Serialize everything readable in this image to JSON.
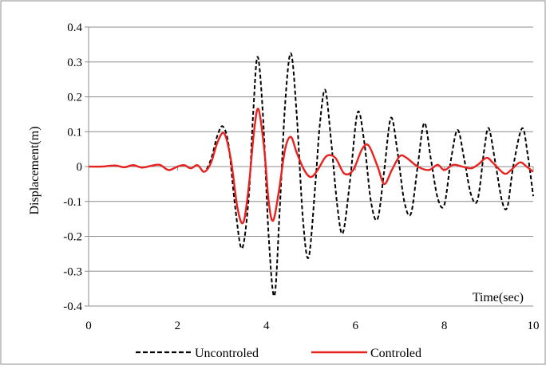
{
  "chart_data": {
    "type": "line",
    "xlabel": "Time(sec)",
    "ylabel": "Displacement(m)",
    "xlim": [
      0,
      10
    ],
    "ylim": [
      -0.4,
      0.4
    ],
    "x_ticks": [
      0,
      2,
      4,
      6,
      8,
      10
    ],
    "y_ticks": [
      0.4,
      0.3,
      0.2,
      0.1,
      0,
      -0.1,
      -0.2,
      -0.3,
      -0.4
    ],
    "x_tick_labels": [
      "0",
      "2",
      "4",
      "6",
      "8",
      "10"
    ],
    "y_tick_labels": [
      "0.4",
      "0.3",
      "0.2",
      "0.1",
      "0",
      "-0.1",
      "-0.2",
      "-0.3",
      "-0.4"
    ],
    "grid": "horizontal",
    "legend_position": "bottom",
    "series": [
      {
        "name": "Uncontroled",
        "color": "#000000",
        "style": "dashed",
        "points": [
          [
            0,
            0
          ],
          [
            0.3,
            0.0
          ],
          [
            0.6,
            0.003
          ],
          [
            0.8,
            -0.002
          ],
          [
            1.0,
            0.004
          ],
          [
            1.2,
            -0.003
          ],
          [
            1.4,
            0.002
          ],
          [
            1.6,
            0.005
          ],
          [
            1.8,
            -0.01
          ],
          [
            2.0,
            0.0
          ],
          [
            2.15,
            0.004
          ],
          [
            2.3,
            -0.005
          ],
          [
            2.45,
            0.004
          ],
          [
            2.6,
            -0.015
          ],
          [
            2.75,
            0.02
          ],
          [
            2.9,
            0.09
          ],
          [
            3.02,
            0.115
          ],
          [
            3.15,
            0.06
          ],
          [
            3.3,
            -0.12
          ],
          [
            3.45,
            -0.235
          ],
          [
            3.6,
            -0.09
          ],
          [
            3.7,
            0.15
          ],
          [
            3.8,
            0.315
          ],
          [
            3.92,
            0.15
          ],
          [
            4.05,
            -0.2
          ],
          [
            4.18,
            -0.37
          ],
          [
            4.3,
            -0.12
          ],
          [
            4.42,
            0.18
          ],
          [
            4.55,
            0.325
          ],
          [
            4.68,
            0.15
          ],
          [
            4.82,
            -0.15
          ],
          [
            4.95,
            -0.26
          ],
          [
            5.1,
            -0.05
          ],
          [
            5.2,
            0.12
          ],
          [
            5.32,
            0.22
          ],
          [
            5.45,
            0.08
          ],
          [
            5.6,
            -0.12
          ],
          [
            5.72,
            -0.19
          ],
          [
            5.88,
            -0.04
          ],
          [
            6.05,
            0.155
          ],
          [
            6.2,
            0.07
          ],
          [
            6.35,
            -0.1
          ],
          [
            6.5,
            -0.15
          ],
          [
            6.65,
            -0.01
          ],
          [
            6.8,
            0.14
          ],
          [
            6.95,
            0.04
          ],
          [
            7.1,
            -0.1
          ],
          [
            7.25,
            -0.135
          ],
          [
            7.4,
            0.0
          ],
          [
            7.55,
            0.125
          ],
          [
            7.7,
            0.02
          ],
          [
            7.85,
            -0.09
          ],
          [
            8.0,
            -0.11
          ],
          [
            8.15,
            0.02
          ],
          [
            8.3,
            0.105
          ],
          [
            8.45,
            0.02
          ],
          [
            8.6,
            -0.08
          ],
          [
            8.75,
            -0.095
          ],
          [
            8.9,
            0.05
          ],
          [
            9.0,
            0.11
          ],
          [
            9.15,
            0.01
          ],
          [
            9.3,
            -0.1
          ],
          [
            9.42,
            -0.115
          ],
          [
            9.55,
            0.0
          ],
          [
            9.75,
            0.11
          ],
          [
            9.88,
            0.03
          ],
          [
            10.0,
            -0.085
          ]
        ]
      },
      {
        "name": "Controled",
        "color": "#e8231f",
        "style": "solid",
        "points": [
          [
            0,
            0
          ],
          [
            0.3,
            0.0
          ],
          [
            0.6,
            0.003
          ],
          [
            0.8,
            -0.002
          ],
          [
            1.0,
            0.004
          ],
          [
            1.2,
            -0.003
          ],
          [
            1.4,
            0.002
          ],
          [
            1.6,
            0.005
          ],
          [
            1.8,
            -0.01
          ],
          [
            2.0,
            0.0
          ],
          [
            2.15,
            0.004
          ],
          [
            2.3,
            -0.005
          ],
          [
            2.45,
            0.004
          ],
          [
            2.6,
            -0.015
          ],
          [
            2.75,
            0.01
          ],
          [
            2.9,
            0.07
          ],
          [
            3.05,
            0.095
          ],
          [
            3.2,
            0.02
          ],
          [
            3.35,
            -0.12
          ],
          [
            3.48,
            -0.16
          ],
          [
            3.6,
            -0.06
          ],
          [
            3.72,
            0.1
          ],
          [
            3.82,
            0.165
          ],
          [
            3.95,
            0.05
          ],
          [
            4.05,
            -0.1
          ],
          [
            4.15,
            -0.155
          ],
          [
            4.28,
            -0.07
          ],
          [
            4.42,
            0.05
          ],
          [
            4.55,
            0.085
          ],
          [
            4.68,
            0.04
          ],
          [
            4.85,
            -0.01
          ],
          [
            5.0,
            -0.03
          ],
          [
            5.15,
            -0.01
          ],
          [
            5.35,
            0.03
          ],
          [
            5.55,
            0.025
          ],
          [
            5.75,
            -0.02
          ],
          [
            5.95,
            -0.01
          ],
          [
            6.15,
            0.05
          ],
          [
            6.3,
            0.06
          ],
          [
            6.5,
            0.0
          ],
          [
            6.65,
            -0.05
          ],
          [
            6.82,
            -0.01
          ],
          [
            7.0,
            0.03
          ],
          [
            7.15,
            0.025
          ],
          [
            7.4,
            0.0
          ],
          [
            7.65,
            -0.01
          ],
          [
            7.85,
            0.005
          ],
          [
            8.0,
            -0.01
          ],
          [
            8.2,
            0.005
          ],
          [
            8.4,
            0.0
          ],
          [
            8.6,
            -0.005
          ],
          [
            8.75,
            0.005
          ],
          [
            8.95,
            0.025
          ],
          [
            9.1,
            0.01
          ],
          [
            9.35,
            -0.02
          ],
          [
            9.5,
            -0.01
          ],
          [
            9.7,
            0.012
          ],
          [
            9.85,
            0.0
          ],
          [
            10.0,
            -0.015
          ]
        ]
      }
    ]
  }
}
